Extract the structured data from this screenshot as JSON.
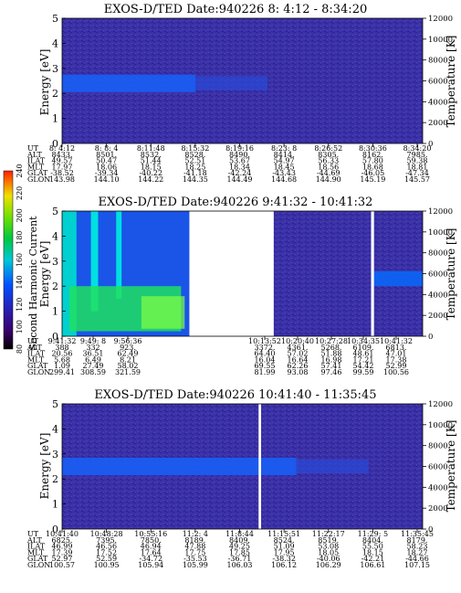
{
  "chart_data": [
    {
      "type": "heatmap",
      "title": "EXOS-D/TED",
      "date_label": "Date:940226",
      "time_range": "8: 4:12 - 8:34:20",
      "ylabel": "Energy [eV]",
      "ylim": [
        0,
        5
      ],
      "y_ticks": [
        "0",
        "1",
        "2",
        "3",
        "4",
        "5"
      ],
      "right_axis_label": "Temperature [K]",
      "right_axis_ticks": [
        "0",
        "2000",
        "4000",
        "6000",
        "8000",
        "10000",
        "12000"
      ],
      "color_range": [
        80,
        240
      ],
      "intensity_band": {
        "energy_center": 2.4,
        "level": 145
      },
      "data_gaps": [],
      "ephemeris_labels": [
        "UT",
        "ALT",
        "ILAT",
        "MLT",
        "GLAT",
        "GLON"
      ],
      "ephemeris": [
        [
          "8: 4:12",
          "8433.",
          "49.57",
          "17.97",
          "-38.52",
          "143.98"
        ],
        [
          "8: 8: 4",
          "8501.",
          "50.47",
          "18.06",
          "-39.34",
          "144.10"
        ],
        [
          "8:11:48",
          "8532.",
          "51.44",
          "18.15",
          "-40.22",
          "144.22"
        ],
        [
          "8:15:32",
          "8528.",
          "52.51",
          "18.25",
          "-41.18",
          "144.35"
        ],
        [
          "8:19:16",
          "8490.",
          "53.67",
          "18.34",
          "-42.24",
          "144.49"
        ],
        [
          "8:23: 8",
          "8414.",
          "54.97",
          "18.45",
          "-43.43",
          "144.68"
        ],
        [
          "8:26:52",
          "8305.",
          "56.33",
          "18.56",
          "-44.69",
          "144.90"
        ],
        [
          "8:30:36",
          "8162.",
          "57.80",
          "18.68",
          "-46.05",
          "145.19"
        ],
        [
          "8:34:20",
          "7985.",
          "59.38",
          "18.81",
          "-47.34",
          "145.57"
        ]
      ]
    },
    {
      "type": "heatmap",
      "title": "EXOS-D/TED",
      "date_label": "Date:940226",
      "time_range": "9:41:32 - 10:41:32",
      "ylabel": "Energy [eV]",
      "ylim": [
        0,
        5
      ],
      "y_ticks": [
        "0",
        "1",
        "2",
        "3",
        "4",
        "5"
      ],
      "right_axis_label": "Temperature [K]",
      "right_axis_ticks": [
        "0",
        "2000",
        "4000",
        "6000",
        "8000",
        "10000",
        "12000"
      ],
      "color_range": [
        80,
        240
      ],
      "intensity_band": {
        "energy_center": 1.2,
        "level": 180
      },
      "data_gaps": [
        [
          0.353,
          0.587
        ],
        [
          0.857,
          0.865
        ]
      ],
      "ephemeris_labels": [
        "UT",
        "ALT",
        "ILAT",
        "MLT",
        "GLAT",
        "GLON"
      ],
      "ephemeris": [
        [
          "9:41:32",
          "388",
          "20.56",
          "5.68",
          "1.09",
          "299.41"
        ],
        [
          "9:49: 8",
          "332",
          "36.51",
          "6.49",
          "27.49",
          "308.59"
        ],
        [
          "9:56:36",
          "923.",
          "62.49",
          "8.21",
          "58.02",
          "321.59"
        ],
        [
          "10:13:52",
          "3372.",
          "64.40",
          "16.04",
          "69.55",
          "81.99"
        ],
        [
          "10:20:40",
          "4361.",
          "57.02",
          "16.64",
          "62.26",
          "93.08"
        ],
        [
          "10:27:28",
          "5268.",
          "51.88",
          "16.98",
          "57.41",
          "97.46"
        ],
        [
          "10:34:35",
          "6109.",
          "48.61",
          "17.21",
          "54.42",
          "99.59"
        ],
        [
          "10:41:32",
          "6813.",
          "47.01",
          "17.38",
          "52.99",
          "100.56"
        ]
      ]
    },
    {
      "type": "heatmap",
      "title": "EXOS-D/TED",
      "date_label": "Date:940226",
      "time_range": "10:41:40 - 11:35:45",
      "ylabel": "Energy [eV]",
      "ylim": [
        0,
        5
      ],
      "y_ticks": [
        "0",
        "1",
        "2",
        "3",
        "4",
        "5"
      ],
      "right_axis_label": "Temperature [K]",
      "right_axis_ticks": [
        "0",
        "2000",
        "4000",
        "6000",
        "8000",
        "10000",
        "12000"
      ],
      "color_range": [
        80,
        240
      ],
      "intensity_band": {
        "energy_center": 2.5,
        "level": 145
      },
      "data_gaps": [
        [
          0.545,
          0.552
        ]
      ],
      "ephemeris_labels": [
        "UT",
        "ALT",
        "ILAT",
        "MLT",
        "GLAT",
        "GLON"
      ],
      "ephemeris": [
        [
          "10:41:40",
          "6825.",
          "46.99",
          "17.39",
          "52.97",
          "100.57"
        ],
        [
          "10:48:28",
          "7395.",
          "46.56",
          "17.52",
          "52.59",
          "100.95"
        ],
        [
          "10:55:16",
          "7850.",
          "46.94",
          "17.64",
          "-34.72",
          "105.94"
        ],
        [
          "11:2: 4",
          "8189.",
          "47.88",
          "17.75",
          "-35.53",
          "105.99"
        ],
        [
          "11:8:44",
          "8409.",
          "49.25",
          "17.85",
          "-36.71",
          "106.03"
        ],
        [
          "11:15:51",
          "8524.",
          "51.09",
          "17.95",
          "-38.32",
          "106.12"
        ],
        [
          "11:22:17",
          "8519.",
          "53.08",
          "18.05",
          "-40.06",
          "106.29"
        ],
        [
          "11:29: 5",
          "8404.",
          "55.50",
          "18.15",
          "-42.21",
          "106.61"
        ],
        [
          "11:35:45",
          "8179.",
          "58.23",
          "18.27",
          "-44.66",
          "107.15"
        ]
      ]
    }
  ],
  "colorbar": {
    "label": "Second Harmonic Current",
    "ticks": [
      "80",
      "100",
      "120",
      "140",
      "160",
      "180",
      "200",
      "220",
      "240"
    ],
    "range": [
      80,
      240
    ]
  }
}
